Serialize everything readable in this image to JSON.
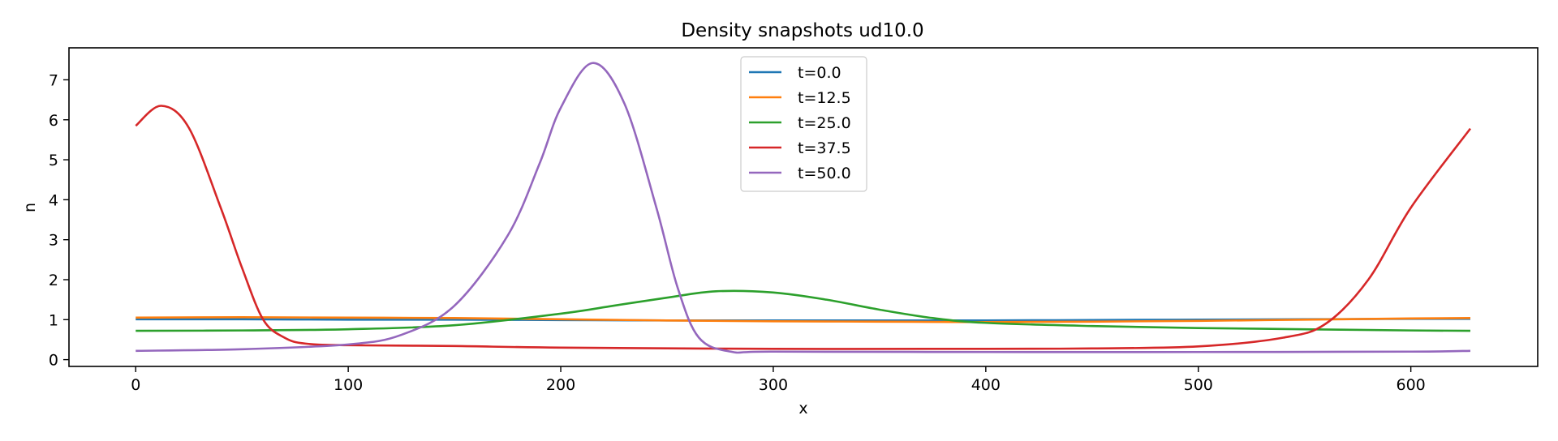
{
  "chart_data": {
    "type": "line",
    "title": "Density snapshots  ud10.0",
    "xlabel": "x",
    "ylabel": "n",
    "xlim": [
      -31.4,
      659.7
    ],
    "ylim": [
      -0.17,
      7.8
    ],
    "xticks": [
      0,
      100,
      200,
      300,
      400,
      500,
      600
    ],
    "yticks": [
      0,
      1,
      2,
      3,
      4,
      5,
      6,
      7
    ],
    "grid": false,
    "legend_position": "top-center",
    "series": [
      {
        "name": "t=0.0",
        "color": "#1f77b4",
        "x": [
          0,
          50,
          100,
          150,
          200,
          250,
          300,
          350,
          400,
          450,
          500,
          550,
          600,
          628
        ],
        "y": [
          1.01,
          1.01,
          1.0,
          1.0,
          0.99,
          0.98,
          0.98,
          0.98,
          0.98,
          0.99,
          1.0,
          1.01,
          1.02,
          1.02
        ]
      },
      {
        "name": "t=12.5",
        "color": "#ff7f0e",
        "x": [
          0,
          50,
          100,
          150,
          200,
          250,
          300,
          350,
          400,
          450,
          500,
          550,
          600,
          628
        ],
        "y": [
          1.05,
          1.06,
          1.05,
          1.04,
          1.01,
          0.98,
          0.96,
          0.95,
          0.94,
          0.95,
          0.97,
          1.0,
          1.03,
          1.04
        ]
      },
      {
        "name": "t=25.0",
        "color": "#2ca02c",
        "x": [
          0,
          50,
          100,
          150,
          200,
          225,
          250,
          273,
          300,
          325,
          350,
          375,
          400,
          450,
          500,
          550,
          600,
          628
        ],
        "y": [
          0.72,
          0.73,
          0.76,
          0.86,
          1.15,
          1.35,
          1.55,
          1.71,
          1.68,
          1.5,
          1.25,
          1.04,
          0.92,
          0.84,
          0.79,
          0.76,
          0.73,
          0.72
        ]
      },
      {
        "name": "t=37.5",
        "color": "#d62728",
        "x": [
          0,
          12,
          25,
          40,
          50,
          60,
          70,
          80,
          100,
          150,
          200,
          300,
          400,
          450,
          500,
          540,
          560,
          580,
          600,
          628
        ],
        "y": [
          5.85,
          6.35,
          5.8,
          3.8,
          2.3,
          1.0,
          0.55,
          0.4,
          0.36,
          0.34,
          0.3,
          0.27,
          0.27,
          0.28,
          0.33,
          0.55,
          0.9,
          2.0,
          3.8,
          5.78
        ]
      },
      {
        "name": "t=50.0",
        "color": "#9467bd",
        "x": [
          0,
          50,
          100,
          125,
          150,
          175,
          190,
          200,
          215,
          230,
          245,
          255,
          265,
          280,
          300,
          400,
          500,
          600,
          628
        ],
        "y": [
          0.22,
          0.26,
          0.38,
          0.62,
          1.35,
          3.1,
          4.9,
          6.3,
          7.42,
          6.4,
          3.8,
          1.8,
          0.55,
          0.2,
          0.2,
          0.19,
          0.19,
          0.2,
          0.22
        ]
      }
    ]
  }
}
